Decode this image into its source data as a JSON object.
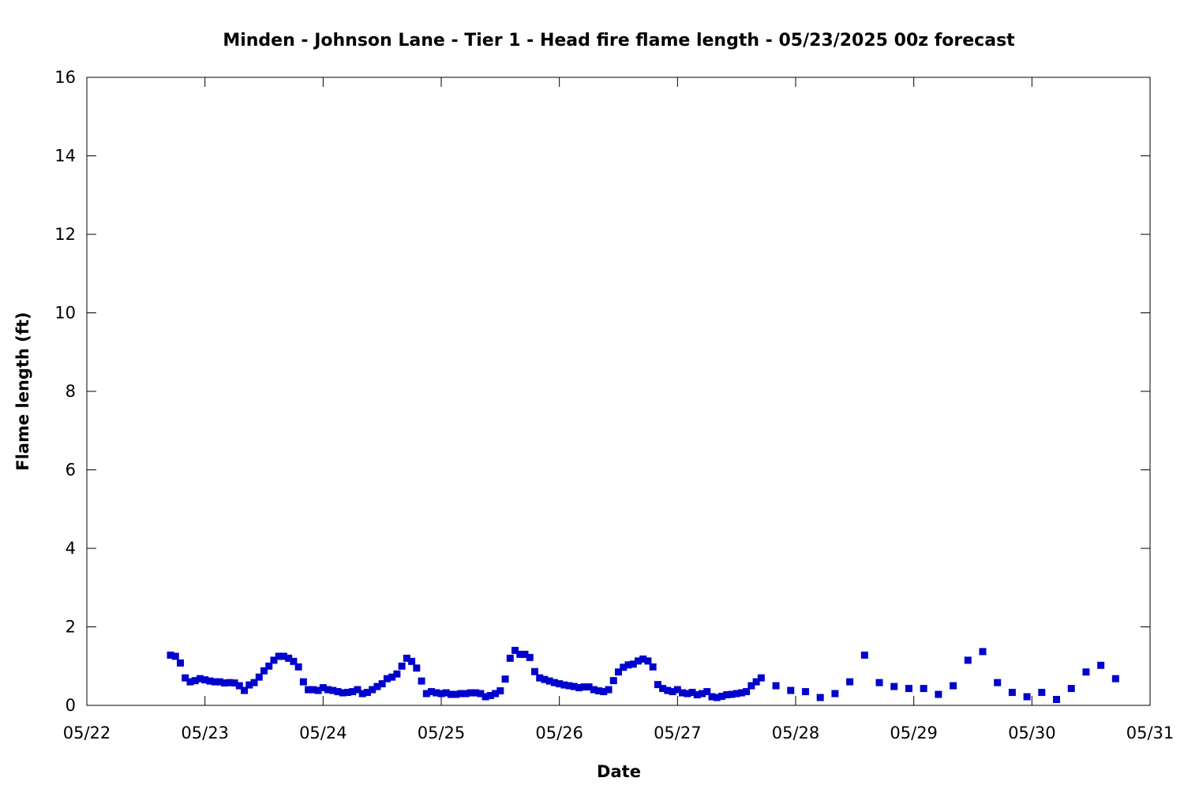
{
  "chart_data": {
    "type": "scatter",
    "title": "Minden - Johnson Lane - Tier 1 - Head fire flame length - 05/23/2025 00z forecast",
    "xlabel": "Date",
    "ylabel": "Flame length (ft)",
    "x_tick_labels": [
      "05/22",
      "05/23",
      "05/24",
      "05/25",
      "05/26",
      "05/27",
      "05/28",
      "05/29",
      "05/30",
      "05/31"
    ],
    "y_ticks": [
      0,
      2,
      4,
      6,
      8,
      10,
      12,
      14,
      16
    ],
    "xlim": [
      "2025-05-22T00:00",
      "2025-05-31T00:00"
    ],
    "ylim": [
      0,
      16
    ],
    "grid": false,
    "marker_color": "#0000cc",
    "series": [
      {
        "points": [
          [
            "2025-05-22T17:00",
            1.28
          ],
          [
            "2025-05-22T18:00",
            1.25
          ],
          [
            "2025-05-22T19:00",
            1.08
          ],
          [
            "2025-05-22T20:00",
            0.7
          ],
          [
            "2025-05-22T21:00",
            0.6
          ],
          [
            "2025-05-22T22:00",
            0.63
          ],
          [
            "2025-05-22T23:00",
            0.68
          ],
          [
            "2025-05-23T00:00",
            0.65
          ],
          [
            "2025-05-23T01:00",
            0.62
          ],
          [
            "2025-05-23T02:00",
            0.6
          ],
          [
            "2025-05-23T03:00",
            0.6
          ],
          [
            "2025-05-23T04:00",
            0.57
          ],
          [
            "2025-05-23T05:00",
            0.58
          ],
          [
            "2025-05-23T06:00",
            0.57
          ],
          [
            "2025-05-23T07:00",
            0.5
          ],
          [
            "2025-05-23T08:00",
            0.38
          ],
          [
            "2025-05-23T09:00",
            0.52
          ],
          [
            "2025-05-23T10:00",
            0.58
          ],
          [
            "2025-05-23T11:00",
            0.72
          ],
          [
            "2025-05-23T12:00",
            0.88
          ],
          [
            "2025-05-23T13:00",
            1.0
          ],
          [
            "2025-05-23T14:00",
            1.15
          ],
          [
            "2025-05-23T15:00",
            1.25
          ],
          [
            "2025-05-23T16:00",
            1.25
          ],
          [
            "2025-05-23T17:00",
            1.2
          ],
          [
            "2025-05-23T18:00",
            1.12
          ],
          [
            "2025-05-23T19:00",
            0.98
          ],
          [
            "2025-05-23T20:00",
            0.6
          ],
          [
            "2025-05-23T21:00",
            0.4
          ],
          [
            "2025-05-23T22:00",
            0.4
          ],
          [
            "2025-05-23T23:00",
            0.38
          ],
          [
            "2025-05-24T00:00",
            0.45
          ],
          [
            "2025-05-24T01:00",
            0.4
          ],
          [
            "2025-05-24T02:00",
            0.38
          ],
          [
            "2025-05-24T03:00",
            0.35
          ],
          [
            "2025-05-24T04:00",
            0.32
          ],
          [
            "2025-05-24T05:00",
            0.33
          ],
          [
            "2025-05-24T06:00",
            0.35
          ],
          [
            "2025-05-24T07:00",
            0.4
          ],
          [
            "2025-05-24T08:00",
            0.3
          ],
          [
            "2025-05-24T09:00",
            0.33
          ],
          [
            "2025-05-24T10:00",
            0.4
          ],
          [
            "2025-05-24T11:00",
            0.48
          ],
          [
            "2025-05-24T12:00",
            0.55
          ],
          [
            "2025-05-24T13:00",
            0.68
          ],
          [
            "2025-05-24T14:00",
            0.72
          ],
          [
            "2025-05-24T15:00",
            0.8
          ],
          [
            "2025-05-24T16:00",
            1.0
          ],
          [
            "2025-05-24T17:00",
            1.2
          ],
          [
            "2025-05-24T18:00",
            1.12
          ],
          [
            "2025-05-24T19:00",
            0.95
          ],
          [
            "2025-05-24T20:00",
            0.62
          ],
          [
            "2025-05-24T21:00",
            0.3
          ],
          [
            "2025-05-24T22:00",
            0.35
          ],
          [
            "2025-05-24T23:00",
            0.32
          ],
          [
            "2025-05-25T00:00",
            0.3
          ],
          [
            "2025-05-25T01:00",
            0.32
          ],
          [
            "2025-05-25T02:00",
            0.28
          ],
          [
            "2025-05-25T03:00",
            0.28
          ],
          [
            "2025-05-25T04:00",
            0.3
          ],
          [
            "2025-05-25T05:00",
            0.3
          ],
          [
            "2025-05-25T06:00",
            0.32
          ],
          [
            "2025-05-25T07:00",
            0.32
          ],
          [
            "2025-05-25T08:00",
            0.3
          ],
          [
            "2025-05-25T09:00",
            0.22
          ],
          [
            "2025-05-25T10:00",
            0.25
          ],
          [
            "2025-05-25T11:00",
            0.3
          ],
          [
            "2025-05-25T12:00",
            0.37
          ],
          [
            "2025-05-25T13:00",
            0.67
          ],
          [
            "2025-05-25T14:00",
            1.2
          ],
          [
            "2025-05-25T15:00",
            1.4
          ],
          [
            "2025-05-25T16:00",
            1.3
          ],
          [
            "2025-05-25T17:00",
            1.3
          ],
          [
            "2025-05-25T18:00",
            1.22
          ],
          [
            "2025-05-25T19:00",
            0.86
          ],
          [
            "2025-05-25T20:00",
            0.7
          ],
          [
            "2025-05-25T21:00",
            0.66
          ],
          [
            "2025-05-25T22:00",
            0.62
          ],
          [
            "2025-05-25T23:00",
            0.58
          ],
          [
            "2025-05-26T00:00",
            0.55
          ],
          [
            "2025-05-26T01:00",
            0.52
          ],
          [
            "2025-05-26T02:00",
            0.5
          ],
          [
            "2025-05-26T03:00",
            0.48
          ],
          [
            "2025-05-26T04:00",
            0.45
          ],
          [
            "2025-05-26T05:00",
            0.47
          ],
          [
            "2025-05-26T06:00",
            0.47
          ],
          [
            "2025-05-26T07:00",
            0.4
          ],
          [
            "2025-05-26T08:00",
            0.37
          ],
          [
            "2025-05-26T09:00",
            0.35
          ],
          [
            "2025-05-26T10:00",
            0.4
          ],
          [
            "2025-05-26T11:00",
            0.63
          ],
          [
            "2025-05-26T12:00",
            0.85
          ],
          [
            "2025-05-26T13:00",
            0.97
          ],
          [
            "2025-05-26T14:00",
            1.03
          ],
          [
            "2025-05-26T15:00",
            1.05
          ],
          [
            "2025-05-26T16:00",
            1.13
          ],
          [
            "2025-05-26T17:00",
            1.18
          ],
          [
            "2025-05-26T18:00",
            1.13
          ],
          [
            "2025-05-26T19:00",
            0.98
          ],
          [
            "2025-05-26T20:00",
            0.53
          ],
          [
            "2025-05-26T21:00",
            0.43
          ],
          [
            "2025-05-26T22:00",
            0.38
          ],
          [
            "2025-05-26T23:00",
            0.35
          ],
          [
            "2025-05-27T00:00",
            0.4
          ],
          [
            "2025-05-27T01:00",
            0.32
          ],
          [
            "2025-05-27T02:00",
            0.3
          ],
          [
            "2025-05-27T03:00",
            0.33
          ],
          [
            "2025-05-27T04:00",
            0.27
          ],
          [
            "2025-05-27T05:00",
            0.3
          ],
          [
            "2025-05-27T06:00",
            0.35
          ],
          [
            "2025-05-27T07:00",
            0.22
          ],
          [
            "2025-05-27T08:00",
            0.2
          ],
          [
            "2025-05-27T09:00",
            0.23
          ],
          [
            "2025-05-27T10:00",
            0.27
          ],
          [
            "2025-05-27T11:00",
            0.28
          ],
          [
            "2025-05-27T12:00",
            0.3
          ],
          [
            "2025-05-27T13:00",
            0.32
          ],
          [
            "2025-05-27T14:00",
            0.35
          ],
          [
            "2025-05-27T15:00",
            0.5
          ],
          [
            "2025-05-27T16:00",
            0.6
          ],
          [
            "2025-05-27T17:00",
            0.7
          ],
          [
            "2025-05-27T20:00",
            0.5
          ],
          [
            "2025-05-27T23:00",
            0.38
          ],
          [
            "2025-05-28T02:00",
            0.35
          ],
          [
            "2025-05-28T05:00",
            0.2
          ],
          [
            "2025-05-28T08:00",
            0.3
          ],
          [
            "2025-05-28T11:00",
            0.6
          ],
          [
            "2025-05-28T14:00",
            1.28
          ],
          [
            "2025-05-28T17:00",
            0.58
          ],
          [
            "2025-05-28T20:00",
            0.48
          ],
          [
            "2025-05-28T23:00",
            0.43
          ],
          [
            "2025-05-29T02:00",
            0.43
          ],
          [
            "2025-05-29T05:00",
            0.28
          ],
          [
            "2025-05-29T08:00",
            0.5
          ],
          [
            "2025-05-29T11:00",
            1.15
          ],
          [
            "2025-05-29T14:00",
            1.37
          ],
          [
            "2025-05-29T17:00",
            0.58
          ],
          [
            "2025-05-29T20:00",
            0.33
          ],
          [
            "2025-05-29T23:00",
            0.22
          ],
          [
            "2025-05-30T02:00",
            0.33
          ],
          [
            "2025-05-30T05:00",
            0.15
          ],
          [
            "2025-05-30T08:00",
            0.43
          ],
          [
            "2025-05-30T11:00",
            0.85
          ],
          [
            "2025-05-30T14:00",
            1.02
          ],
          [
            "2025-05-30T17:00",
            0.68
          ]
        ]
      }
    ]
  }
}
